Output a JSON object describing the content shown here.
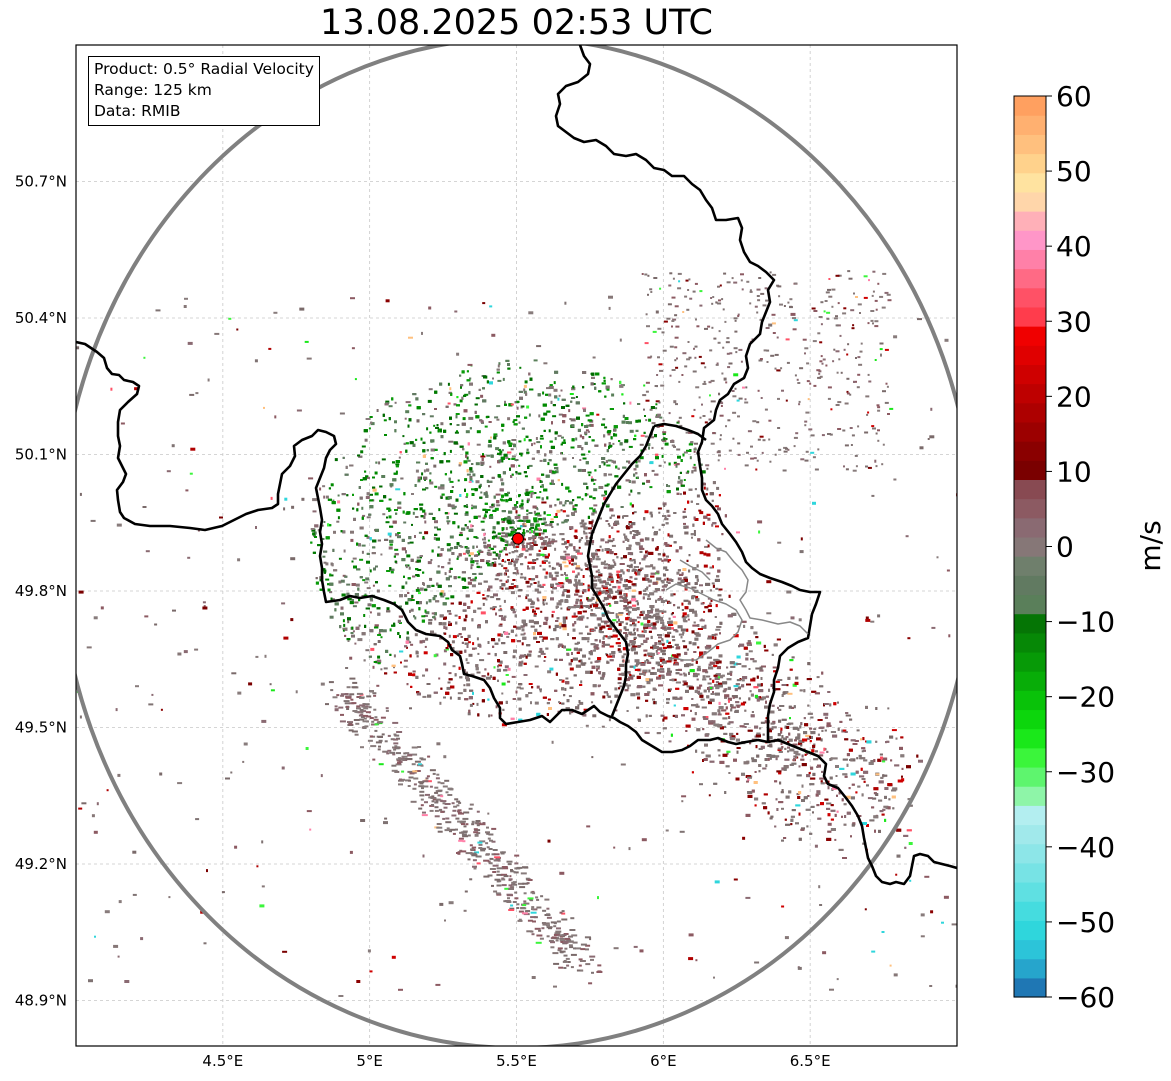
{
  "title": "13.08.2025 02:53 UTC",
  "info_box": {
    "product": "Product: 0.5° Radial Velocity",
    "range": "Range: 125 km",
    "data": "Data: RMIB"
  },
  "map": {
    "lon_range": [
      4.0,
      7.0
    ],
    "lat_range": [
      48.8,
      51.0
    ],
    "lon_ticks": [
      {
        "value": 4.5,
        "label": "4.5°E"
      },
      {
        "value": 5.0,
        "label": "5°E"
      },
      {
        "value": 5.5,
        "label": "5.5°E"
      },
      {
        "value": 6.0,
        "label": "6°E"
      },
      {
        "value": 6.5,
        "label": "6.5°E"
      }
    ],
    "lat_ticks": [
      {
        "value": 50.7,
        "label": "50.7°N"
      },
      {
        "value": 50.4,
        "label": "50.4°N"
      },
      {
        "value": 50.1,
        "label": "50.1°N"
      },
      {
        "value": 49.8,
        "label": "49.8°N"
      },
      {
        "value": 49.5,
        "label": "49.5°N"
      },
      {
        "value": 49.2,
        "label": "49.2°N"
      },
      {
        "value": 48.9,
        "label": "48.9°N"
      }
    ],
    "grid": true,
    "radar_site": {
      "lon": 5.505,
      "lat": 49.915,
      "color": "#ff0000"
    },
    "range_ring_color": "#808080",
    "border_color": "#000000"
  },
  "colorbar": {
    "unit": "m/s",
    "min": -60,
    "max": 60,
    "ticks": [
      {
        "value": 60,
        "label": "60"
      },
      {
        "value": 50,
        "label": "50"
      },
      {
        "value": 40,
        "label": "40"
      },
      {
        "value": 30,
        "label": "30"
      },
      {
        "value": 20,
        "label": "20"
      },
      {
        "value": 10,
        "label": "10"
      },
      {
        "value": 0,
        "label": "0"
      },
      {
        "value": -10,
        "label": "−10"
      },
      {
        "value": -20,
        "label": "−20"
      },
      {
        "value": -30,
        "label": "−30"
      },
      {
        "value": -40,
        "label": "−40"
      },
      {
        "value": -50,
        "label": "−50"
      },
      {
        "value": -60,
        "label": "−60"
      }
    ],
    "colors_bottom_to_top": [
      "#1f77b4",
      "#26a5cc",
      "#2cc4d9",
      "#2fd6dc",
      "#45dcdf",
      "#5fe0e2",
      "#77e3e5",
      "#8de6e8",
      "#a1e9eb",
      "#b3eef0",
      "#8ef5a8",
      "#5ef56e",
      "#3bf53b",
      "#1ae81a",
      "#0cd60c",
      "#09c209",
      "#08ad08",
      "#079a07",
      "#068806",
      "#057505",
      "#5a7f5a",
      "#617a61",
      "#6f7f6c",
      "#867777",
      "#8a6a72",
      "#8c5a62",
      "#884a52",
      "#7a0000",
      "#8a0000",
      "#9c0000",
      "#ad0000",
      "#be0000",
      "#cf0000",
      "#e00000",
      "#f00000",
      "#ff3c4c",
      "#ff5166",
      "#ff6a85",
      "#ff80a8",
      "#ff96c8",
      "#ffb0b8",
      "#ffd6aa",
      "#ffe3a0",
      "#ffd28c",
      "#ffc07e",
      "#ffb070",
      "#ffa060"
    ]
  }
}
